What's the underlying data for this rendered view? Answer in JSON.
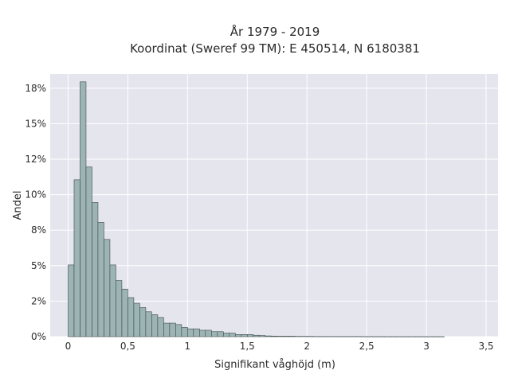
{
  "chart_data": {
    "type": "bar",
    "title_line1": "År 1979 - 2019",
    "title_line2": "Koordinat (Sweref 99 TM): E 450514, N 6180381",
    "xlabel": "Signifikant våghöjd (m)",
    "ylabel": "Andel",
    "xlim": [
      -0.15,
      3.6
    ],
    "ylim": [
      0,
      0.185
    ],
    "grid": true,
    "bin_width": 0.05,
    "bin_start": 0.0,
    "x_ticks": [
      {
        "value": 0,
        "label": "0"
      },
      {
        "value": 0.5,
        "label": "0,5"
      },
      {
        "value": 1,
        "label": "1"
      },
      {
        "value": 1.5,
        "label": "1,5"
      },
      {
        "value": 2,
        "label": "2"
      },
      {
        "value": 2.5,
        "label": "2,5"
      },
      {
        "value": 3,
        "label": "3"
      },
      {
        "value": 3.5,
        "label": "3,5"
      }
    ],
    "y_ticks": [
      {
        "value": 0,
        "label": "0%"
      },
      {
        "value": 0.025,
        "label": "2%"
      },
      {
        "value": 0.05,
        "label": "5%"
      },
      {
        "value": 0.075,
        "label": "8%"
      },
      {
        "value": 0.1,
        "label": "10%"
      },
      {
        "value": 0.125,
        "label": "12%"
      },
      {
        "value": 0.15,
        "label": "15%"
      },
      {
        "value": 0.175,
        "label": "18%"
      }
    ],
    "values": [
      0.0505,
      0.1105,
      0.1795,
      0.1195,
      0.0945,
      0.0805,
      0.0685,
      0.0505,
      0.0395,
      0.0335,
      0.0275,
      0.0235,
      0.0205,
      0.0175,
      0.0155,
      0.0135,
      0.0095,
      0.0095,
      0.0085,
      0.0065,
      0.0055,
      0.0055,
      0.0045,
      0.0045,
      0.0035,
      0.0035,
      0.0025,
      0.0025,
      0.0015,
      0.0015,
      0.0015,
      0.001,
      0.0008,
      0.0005,
      0.0004,
      0.0003,
      0.0003,
      0.0003,
      0.0002,
      0.0002,
      0.0002,
      0.0001,
      0.0001,
      0.0001,
      0.0001,
      0.0001,
      0.0001,
      0.0001,
      0.0001,
      5e-05,
      5e-05,
      3e-05,
      3e-05,
      2e-05,
      2e-05,
      2e-05,
      2e-05,
      2e-05,
      2e-05,
      2e-05,
      2e-05,
      2e-05,
      1e-05
    ],
    "colors": {
      "plot_bg": "#e5e5ee",
      "bar_fill": "#9db4b4",
      "bar_stroke": "#3d4a4a",
      "grid": "#ffffff"
    }
  }
}
